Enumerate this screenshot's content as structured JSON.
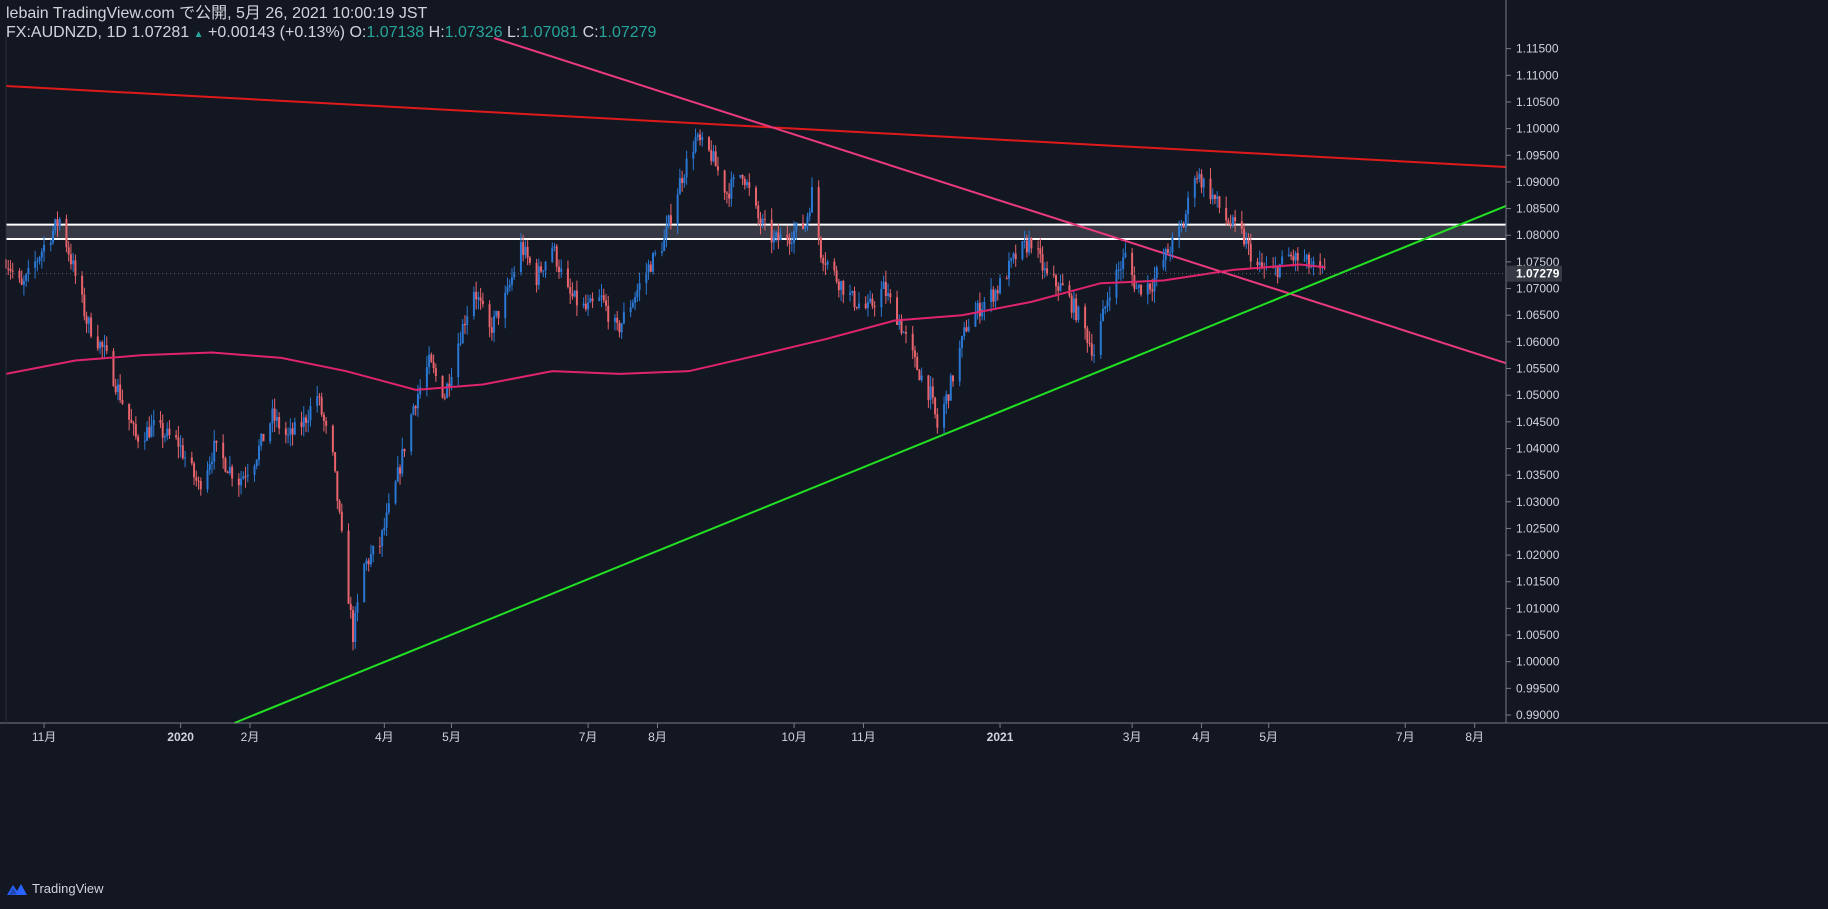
{
  "header": {
    "publish_line": "lebain TradingView.com で公開, 5月 26, 2021 10:00:19 JST",
    "symbol": "FX:AUDNZD, 1D",
    "last": "1.07281",
    "arrow": "▲",
    "change": "+0.00143 (+0.13%)",
    "o_label": "O:",
    "o_value": "1.07138",
    "h_label": "H:",
    "h_value": "1.07326",
    "l_label": "L:",
    "l_value": "1.07081",
    "c_label": "C:",
    "c_value": "1.07279"
  },
  "footer": {
    "brand": "TradingView",
    "logo_icon": "tradingview-logo-icon"
  },
  "colors": {
    "background": "#131722",
    "up_candle": "#2a78d4",
    "down_candle": "#e8636b",
    "moving_average": "#e0246c",
    "resistance_line": "#e01a1a",
    "descending_trendline": "#e83a7d",
    "ascending_trendline": "#22e022",
    "zone_border": "#ffffff",
    "price_label_bg": "#363a45"
  },
  "chart_data": {
    "type": "candlestick",
    "symbol": "FX:AUDNZD",
    "timeframe": "1D",
    "last_price_label": "1.07279",
    "y_range": [
      0.9885,
      1.117
    ],
    "y_ticks": [
      "1.11500",
      "1.11000",
      "1.10500",
      "1.10000",
      "1.09500",
      "1.09000",
      "1.08500",
      "1.08000",
      "1.07500",
      "1.07000",
      "1.06500",
      "1.06000",
      "1.05500",
      "1.05000",
      "1.04500",
      "1.04000",
      "1.03500",
      "1.03000",
      "1.02500",
      "1.02000",
      "1.01500",
      "1.01000",
      "1.00500",
      "1.00000",
      "0.99500",
      "0.99000"
    ],
    "x_range": [
      "2019-10-15",
      "2021-08-15"
    ],
    "x_ticks": [
      {
        "label": "11月",
        "date": "2019-11-01"
      },
      {
        "label": "2020",
        "date": "2020-01-01"
      },
      {
        "label": "2月",
        "date": "2020-02-01"
      },
      {
        "label": "4月",
        "date": "2020-04-01"
      },
      {
        "label": "5月",
        "date": "2020-05-01"
      },
      {
        "label": "7月",
        "date": "2020-07-01"
      },
      {
        "label": "8月",
        "date": "2020-08-01"
      },
      {
        "label": "10月",
        "date": "2020-10-01"
      },
      {
        "label": "11月",
        "date": "2020-11-01"
      },
      {
        "label": "2021",
        "date": "2021-01-01"
      },
      {
        "label": "3月",
        "date": "2021-03-01"
      },
      {
        "label": "4月",
        "date": "2021-04-01"
      },
      {
        "label": "5月",
        "date": "2021-05-01"
      },
      {
        "label": "7月",
        "date": "2021-07-01"
      },
      {
        "label": "8月",
        "date": "2021-08-01"
      }
    ],
    "price_path": [
      [
        "2019-10-15",
        1.0755
      ],
      [
        "2019-10-22",
        1.07
      ],
      [
        "2019-11-01",
        1.078
      ],
      [
        "2019-11-08",
        1.083
      ],
      [
        "2019-11-14",
        1.074
      ],
      [
        "2019-11-20",
        1.064
      ],
      [
        "2019-11-28",
        1.058
      ],
      [
        "2019-12-05",
        1.05
      ],
      [
        "2019-12-12",
        1.042
      ],
      [
        "2019-12-20",
        1.044
      ],
      [
        "2019-12-31",
        1.041
      ],
      [
        "2020-01-09",
        1.033
      ],
      [
        "2020-01-16",
        1.04
      ],
      [
        "2020-01-27",
        1.034
      ],
      [
        "2020-02-03",
        1.038
      ],
      [
        "2020-02-11",
        1.046
      ],
      [
        "2020-02-18",
        1.042
      ],
      [
        "2020-02-25",
        1.045
      ],
      [
        "2020-03-02",
        1.05
      ],
      [
        "2020-03-09",
        1.038
      ],
      [
        "2020-03-13",
        1.023
      ],
      [
        "2020-03-18",
        1.005
      ],
      [
        "2020-03-23",
        1.018
      ],
      [
        "2020-03-30",
        1.022
      ],
      [
        "2020-04-06",
        1.033
      ],
      [
        "2020-04-14",
        1.048
      ],
      [
        "2020-04-21",
        1.056
      ],
      [
        "2020-04-28",
        1.05
      ],
      [
        "2020-05-04",
        1.06
      ],
      [
        "2020-05-11",
        1.07
      ],
      [
        "2020-05-18",
        1.062
      ],
      [
        "2020-05-26",
        1.069
      ],
      [
        "2020-06-01",
        1.078
      ],
      [
        "2020-06-08",
        1.072
      ],
      [
        "2020-06-15",
        1.078
      ],
      [
        "2020-06-22",
        1.069
      ],
      [
        "2020-06-30",
        1.066
      ],
      [
        "2020-07-07",
        1.068
      ],
      [
        "2020-07-14",
        1.062
      ],
      [
        "2020-07-21",
        1.068
      ],
      [
        "2020-07-28",
        1.074
      ],
      [
        "2020-08-04",
        1.079
      ],
      [
        "2020-08-11",
        1.09
      ],
      [
        "2020-08-18",
        1.098
      ],
      [
        "2020-08-25",
        1.095
      ],
      [
        "2020-09-01",
        1.088
      ],
      [
        "2020-09-08",
        1.092
      ],
      [
        "2020-09-15",
        1.083
      ],
      [
        "2020-09-22",
        1.079
      ],
      [
        "2020-09-29",
        1.08
      ],
      [
        "2020-10-06",
        1.082
      ],
      [
        "2020-10-09",
        1.088
      ],
      [
        "2020-10-13",
        1.077
      ],
      [
        "2020-10-20",
        1.072
      ],
      [
        "2020-10-27",
        1.068
      ],
      [
        "2020-11-03",
        1.066
      ],
      [
        "2020-11-10",
        1.07
      ],
      [
        "2020-11-17",
        1.064
      ],
      [
        "2020-11-24",
        1.056
      ],
      [
        "2020-12-01",
        1.05
      ],
      [
        "2020-12-04",
        1.044
      ],
      [
        "2020-12-10",
        1.052
      ],
      [
        "2020-12-17",
        1.063
      ],
      [
        "2020-12-24",
        1.067
      ],
      [
        "2020-12-31",
        1.07
      ],
      [
        "2021-01-08",
        1.076
      ],
      [
        "2021-01-15",
        1.079
      ],
      [
        "2021-01-22",
        1.072
      ],
      [
        "2021-01-29",
        1.07
      ],
      [
        "2021-02-05",
        1.065
      ],
      [
        "2021-02-12",
        1.058
      ],
      [
        "2021-02-19",
        1.07
      ],
      [
        "2021-02-26",
        1.076
      ],
      [
        "2021-03-03",
        1.07
      ],
      [
        "2021-03-10",
        1.071
      ],
      [
        "2021-03-17",
        1.077
      ],
      [
        "2021-03-24",
        1.082
      ],
      [
        "2021-03-29",
        1.092
      ],
      [
        "2021-04-05",
        1.088
      ],
      [
        "2021-04-12",
        1.083
      ],
      [
        "2021-04-19",
        1.08
      ],
      [
        "2021-04-26",
        1.074
      ],
      [
        "2021-05-03",
        1.073
      ],
      [
        "2021-05-10",
        1.076
      ],
      [
        "2021-05-17",
        1.075
      ],
      [
        "2021-05-24",
        1.0728
      ],
      [
        "2021-05-26",
        1.0728
      ]
    ],
    "moving_average": [
      [
        "2019-10-15",
        1.054
      ],
      [
        "2019-11-15",
        1.0565
      ],
      [
        "2019-12-15",
        1.0575
      ],
      [
        "2020-01-15",
        1.058
      ],
      [
        "2020-02-15",
        1.057
      ],
      [
        "2020-03-15",
        1.0545
      ],
      [
        "2020-04-15",
        1.051
      ],
      [
        "2020-05-15",
        1.052
      ],
      [
        "2020-06-15",
        1.0545
      ],
      [
        "2020-07-15",
        1.054
      ],
      [
        "2020-08-15",
        1.0545
      ],
      [
        "2020-09-15",
        1.0575
      ],
      [
        "2020-10-15",
        1.0605
      ],
      [
        "2020-11-15",
        1.064
      ],
      [
        "2020-12-15",
        1.065
      ],
      [
        "2021-01-15",
        1.0675
      ],
      [
        "2021-02-15",
        1.071
      ],
      [
        "2021-03-15",
        1.0715
      ],
      [
        "2021-04-15",
        1.0735
      ],
      [
        "2021-05-15",
        1.0745
      ],
      [
        "2021-05-26",
        1.074
      ]
    ],
    "horizontal_zone": [
      1.0793,
      1.082
    ],
    "trendlines": [
      {
        "kind": "resistance",
        "from": [
          "2019-10-15",
          1.108
        ],
        "to": [
          "2021-08-15",
          1.0928
        ]
      },
      {
        "kind": "descending",
        "from": [
          "2020-05-20",
          1.117
        ],
        "to": [
          "2021-08-15",
          1.056
        ]
      },
      {
        "kind": "ascending",
        "from": [
          "2020-01-25",
          0.9885
        ],
        "to": [
          "2021-08-15",
          1.0855
        ]
      }
    ]
  }
}
